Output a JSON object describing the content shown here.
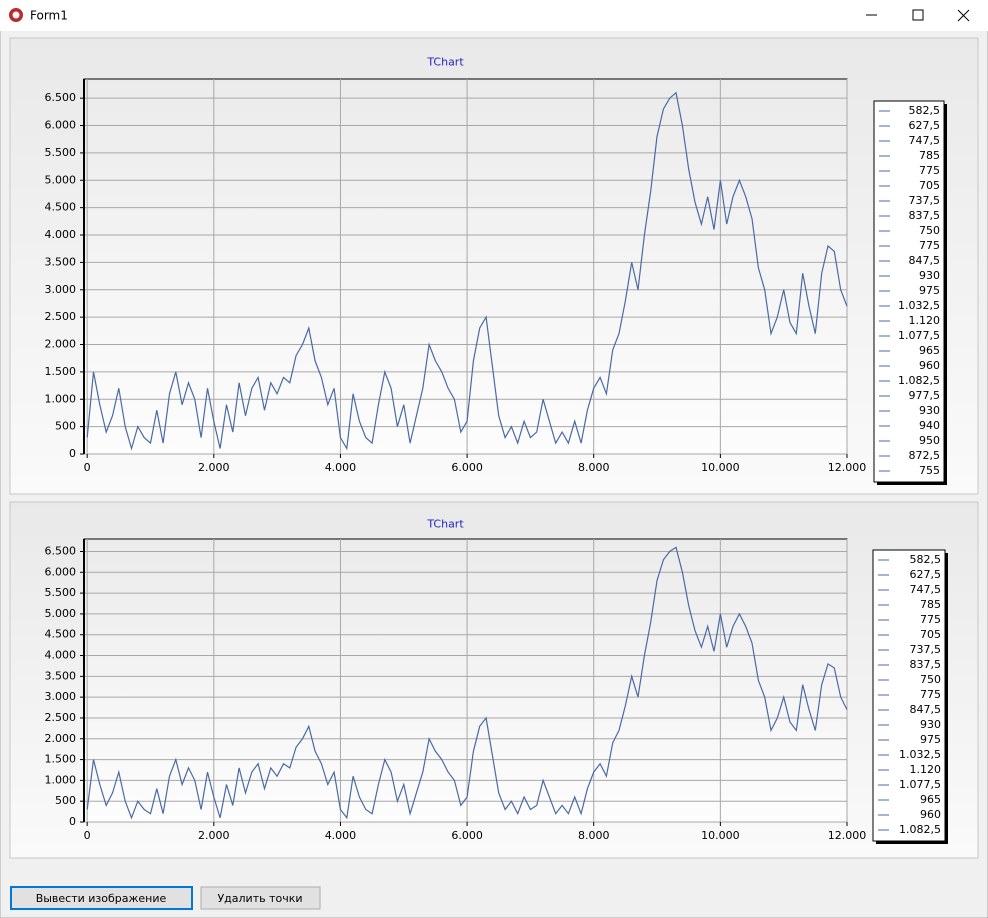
{
  "window": {
    "title": "Form1"
  },
  "buttons": [
    "Вывести изображение",
    "Удалить точки"
  ],
  "chart_data": [
    {
      "type": "line",
      "title": "TChart",
      "x": [
        0,
        100,
        200,
        300,
        400,
        500,
        600,
        700,
        800,
        900,
        1000,
        1100,
        1200,
        1300,
        1400,
        1500,
        1600,
        1700,
        1800,
        1900,
        2000,
        2100,
        2200,
        2300,
        2400,
        2500,
        2600,
        2700,
        2800,
        2900,
        3000,
        3100,
        3200,
        3300,
        3400,
        3500,
        3600,
        3700,
        3800,
        3900,
        4000,
        4100,
        4200,
        4300,
        4400,
        4500,
        4600,
        4700,
        4800,
        4900,
        5000,
        5100,
        5200,
        5300,
        5400,
        5500,
        5600,
        5700,
        5800,
        5900,
        6000,
        6100,
        6200,
        6300,
        6400,
        6500,
        6600,
        6700,
        6800,
        6900,
        7000,
        7100,
        7200,
        7300,
        7400,
        7500,
        7600,
        7700,
        7800,
        7900,
        8000,
        8100,
        8200,
        8300,
        8400,
        8500,
        8600,
        8700,
        8800,
        8900,
        9000,
        9100,
        9200,
        9300,
        9400,
        9500,
        9600,
        9700,
        9800,
        9900,
        10000,
        10100,
        10200,
        10300,
        10400,
        10500,
        10600,
        10700,
        10800,
        10900,
        11000,
        11100,
        11200,
        11300,
        11400,
        11500,
        11600,
        11700,
        11800,
        11900,
        12000
      ],
      "series": [
        {
          "color": "#4a6aa5",
          "values": [
            300,
            1500,
            900,
            400,
            700,
            1200,
            500,
            100,
            500,
            300,
            200,
            800,
            200,
            1100,
            1500,
            900,
            1300,
            1000,
            300,
            1200,
            600,
            100,
            900,
            400,
            1300,
            700,
            1200,
            1400,
            800,
            1300,
            1100,
            1400,
            1300,
            1800,
            2000,
            2300,
            1700,
            1400,
            900,
            1200,
            300,
            100,
            1100,
            600,
            300,
            200,
            900,
            1500,
            1200,
            500,
            900,
            200,
            700,
            1200,
            2000,
            1700,
            1500,
            1200,
            1000,
            400,
            600,
            1700,
            2300,
            2500,
            1600,
            700,
            300,
            500,
            200,
            600,
            300,
            400,
            1000,
            600,
            200,
            400,
            200,
            600,
            200,
            800,
            1200,
            1400,
            1100,
            1900,
            2200,
            2800,
            3500,
            3000,
            4000,
            4800,
            5800,
            6300,
            6500,
            6600,
            6000,
            5200,
            4600,
            4200,
            4700,
            4100,
            5000,
            4200,
            4700,
            5000,
            4700,
            4300,
            3400,
            3000,
            2200,
            2500,
            3000,
            2400,
            2200,
            3300,
            2700,
            2200,
            3300,
            3800,
            3700,
            3000,
            2700
          ]
        }
      ],
      "xlim": [
        -50,
        12000
      ],
      "xticks": [
        0,
        {
          "value": 2000,
          "label": "2.000"
        },
        {
          "value": 4000,
          "label": "4.000"
        },
        {
          "value": 6000,
          "label": "6.000"
        },
        {
          "value": 8000,
          "label": "8.000"
        },
        {
          "value": 10000,
          "label": "10.000"
        },
        {
          "value": 12000,
          "label": "12.000"
        }
      ],
      "ylim": [
        0,
        6850
      ],
      "yticks": [
        0,
        500,
        {
          "value": 1000,
          "label": "1.000"
        },
        {
          "value": 1500,
          "label": "1.500"
        },
        {
          "value": 2000,
          "label": "2.000"
        },
        {
          "value": 2500,
          "label": "2.500"
        },
        {
          "value": 3000,
          "label": "3.000"
        },
        {
          "value": 3500,
          "label": "3.500"
        },
        {
          "value": 4000,
          "label": "4.000"
        },
        {
          "value": 4500,
          "label": "4.500"
        },
        {
          "value": 5000,
          "label": "5.000"
        },
        {
          "value": 5500,
          "label": "5.500"
        },
        {
          "value": 6000,
          "label": "6.000"
        },
        {
          "value": 6500,
          "label": "6.500"
        }
      ],
      "grid": true,
      "legend": {
        "values": [
          582.5,
          627.5,
          747.5,
          785,
          775,
          705,
          737.5,
          837.5,
          750,
          775,
          847.5,
          930,
          975,
          1032.5,
          1120,
          1077.5,
          965,
          960,
          1082.5,
          977.5,
          930,
          940,
          950,
          872.5,
          755
        ],
        "value_labels": [
          "582,5",
          "627,5",
          "747,5",
          "785",
          "775",
          "705",
          "737,5",
          "837,5",
          "750",
          "775",
          "847,5",
          "930",
          "975",
          "1.032,5",
          "1.120",
          "1.077,5",
          "965",
          "960",
          "1.082,5",
          "977,5",
          "930",
          "940",
          "950",
          "872,5",
          "755"
        ]
      }
    },
    {
      "type": "line",
      "title": "TChart",
      "x": [
        0,
        100,
        200,
        300,
        400,
        500,
        600,
        700,
        800,
        900,
        1000,
        1100,
        1200,
        1300,
        1400,
        1500,
        1600,
        1700,
        1800,
        1900,
        2000,
        2100,
        2200,
        2300,
        2400,
        2500,
        2600,
        2700,
        2800,
        2900,
        3000,
        3100,
        3200,
        3300,
        3400,
        3500,
        3600,
        3700,
        3800,
        3900,
        4000,
        4100,
        4200,
        4300,
        4400,
        4500,
        4600,
        4700,
        4800,
        4900,
        5000,
        5100,
        5200,
        5300,
        5400,
        5500,
        5600,
        5700,
        5800,
        5900,
        6000,
        6100,
        6200,
        6300,
        6400,
        6500,
        6600,
        6700,
        6800,
        6900,
        7000,
        7100,
        7200,
        7300,
        7400,
        7500,
        7600,
        7700,
        7800,
        7900,
        8000,
        8100,
        8200,
        8300,
        8400,
        8500,
        8600,
        8700,
        8800,
        8900,
        9000,
        9100,
        9200,
        9300,
        9400,
        9500,
        9600,
        9700,
        9800,
        9900,
        10000,
        10100,
        10200,
        10300,
        10400,
        10500,
        10600,
        10700,
        10800,
        10900,
        11000,
        11100,
        11200,
        11300,
        11400,
        11500,
        11600,
        11700,
        11800,
        11900,
        12000
      ],
      "series": [
        {
          "color": "#4a6aa5",
          "values": [
            300,
            1500,
            900,
            400,
            700,
            1200,
            500,
            100,
            500,
            300,
            200,
            800,
            200,
            1100,
            1500,
            900,
            1300,
            1000,
            300,
            1200,
            600,
            100,
            900,
            400,
            1300,
            700,
            1200,
            1400,
            800,
            1300,
            1100,
            1400,
            1300,
            1800,
            2000,
            2300,
            1700,
            1400,
            900,
            1200,
            300,
            100,
            1100,
            600,
            300,
            200,
            900,
            1500,
            1200,
            500,
            900,
            200,
            700,
            1200,
            2000,
            1700,
            1500,
            1200,
            1000,
            400,
            600,
            1700,
            2300,
            2500,
            1600,
            700,
            300,
            500,
            200,
            600,
            300,
            400,
            1000,
            600,
            200,
            400,
            200,
            600,
            200,
            800,
            1200,
            1400,
            1100,
            1900,
            2200,
            2800,
            3500,
            3000,
            4000,
            4800,
            5800,
            6300,
            6500,
            6600,
            6000,
            5200,
            4600,
            4200,
            4700,
            4100,
            5000,
            4200,
            4700,
            5000,
            4700,
            4300,
            3400,
            3000,
            2200,
            2500,
            3000,
            2400,
            2200,
            3300,
            2700,
            2200,
            3300,
            3800,
            3700,
            3000,
            2700
          ]
        }
      ],
      "xlim": [
        -50,
        12000
      ],
      "xticks": [
        0,
        {
          "value": 2000,
          "label": "2.000"
        },
        {
          "value": 4000,
          "label": "4.000"
        },
        {
          "value": 6000,
          "label": "6.000"
        },
        {
          "value": 8000,
          "label": "8.000"
        },
        {
          "value": 10000,
          "label": "10.000"
        },
        {
          "value": 12000,
          "label": "12.000"
        }
      ],
      "ylim": [
        0,
        6800
      ],
      "yticks": [
        0,
        500,
        {
          "value": 1000,
          "label": "1.000"
        },
        {
          "value": 1500,
          "label": "1.500"
        },
        {
          "value": 2000,
          "label": "2.000"
        },
        {
          "value": 2500,
          "label": "2.500"
        },
        {
          "value": 3000,
          "label": "3.000"
        },
        {
          "value": 3500,
          "label": "3.500"
        },
        {
          "value": 4000,
          "label": "4.000"
        },
        {
          "value": 4500,
          "label": "4.500"
        },
        {
          "value": 5000,
          "label": "5.000"
        },
        {
          "value": 5500,
          "label": "5.500"
        },
        {
          "value": 6000,
          "label": "6.000"
        },
        {
          "value": 6500,
          "label": "6.500"
        }
      ],
      "grid": true,
      "legend": {
        "values": [
          582.5,
          627.5,
          747.5,
          785,
          775,
          705,
          737.5,
          837.5,
          750,
          775,
          847.5,
          930,
          975,
          1032.5,
          1120,
          1077.5,
          965,
          960,
          1082.5
        ],
        "value_labels": [
          "582,5",
          "627,5",
          "747,5",
          "785",
          "775",
          "705",
          "737,5",
          "837,5",
          "750",
          "775",
          "847,5",
          "930",
          "975",
          "1.032,5",
          "1.120",
          "1.077,5",
          "965",
          "960",
          "1.082,5"
        ]
      }
    }
  ]
}
